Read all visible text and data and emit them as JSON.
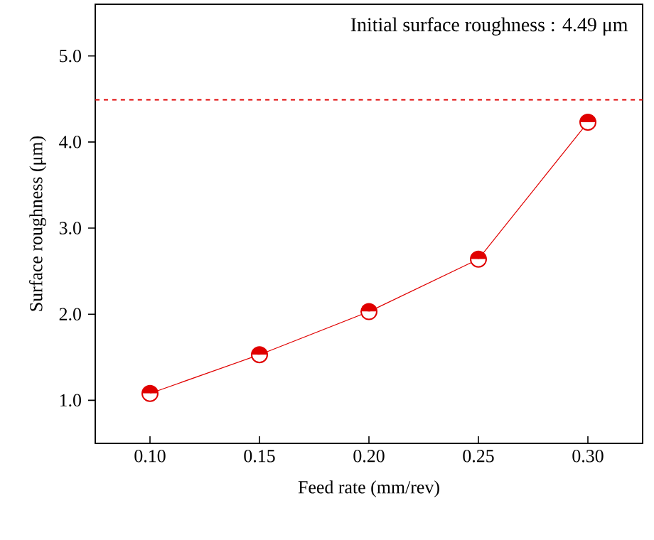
{
  "chart_data": {
    "type": "line",
    "xlabel": "Feed rate (mm/rev)",
    "ylabel": "Surface roughness (μm)",
    "x": [
      0.1,
      0.15,
      0.2,
      0.25,
      0.3
    ],
    "series": [
      {
        "color": "#e00000",
        "values": [
          1.08,
          1.53,
          2.03,
          2.64,
          4.23
        ]
      }
    ],
    "xlim": [
      0.075,
      0.325
    ],
    "ylim": [
      0.5,
      5.6
    ],
    "xticks": [
      {
        "value": 0.1,
        "label": "0.10"
      },
      {
        "value": 0.15,
        "label": "0.15"
      },
      {
        "value": 0.2,
        "label": "0.20"
      },
      {
        "value": 0.25,
        "label": "0.25"
      },
      {
        "value": 0.3,
        "label": "0.30"
      }
    ],
    "yticks": [
      {
        "value": 1,
        "label": "1.0"
      },
      {
        "value": 2,
        "label": "2.0"
      },
      {
        "value": 3,
        "label": "3.0"
      },
      {
        "value": 4,
        "label": "4.0"
      },
      {
        "value": 5,
        "label": "5.0"
      }
    ],
    "ref_lines": [
      {
        "axis": "y",
        "value": 4.49,
        "color": "#e00000",
        "line_style": "dashed"
      }
    ],
    "annotations": [
      "Initial surface roughness : 4.49 μm"
    ],
    "marker": "circle",
    "line_style": "solid"
  }
}
